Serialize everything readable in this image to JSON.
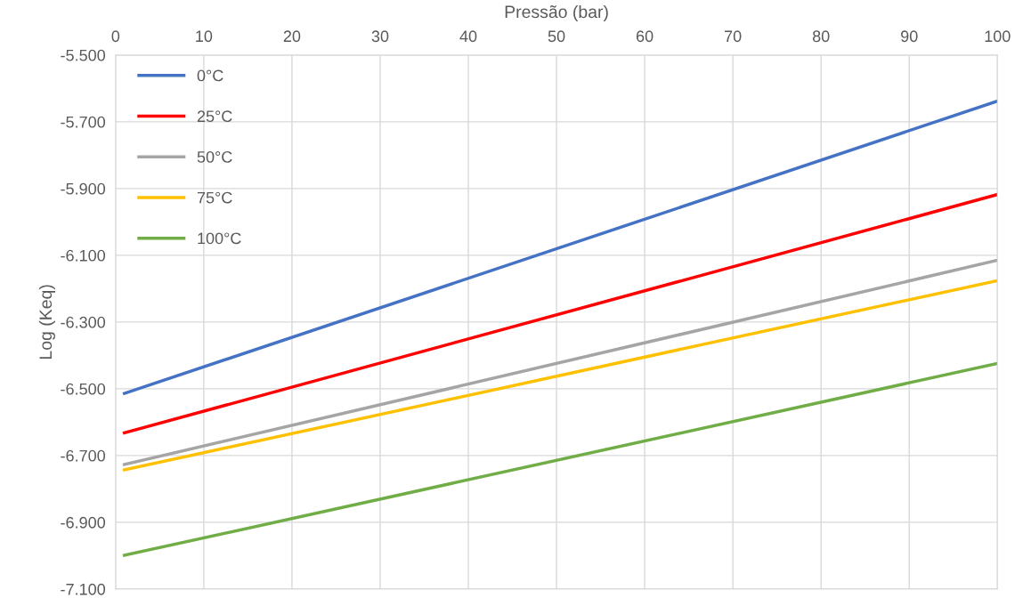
{
  "chart_data": {
    "type": "line",
    "xlabel": "Pressão (bar)",
    "ylabel": "Log (Keq)",
    "xlim": [
      0,
      100
    ],
    "xticks": [
      0,
      10,
      20,
      30,
      40,
      50,
      60,
      70,
      80,
      90,
      100
    ],
    "ylim": [
      -7.1,
      -5.5
    ],
    "yticks": [
      {
        "value": -7.1,
        "label": "-7.100"
      },
      {
        "value": -6.9,
        "label": "-6.900"
      },
      {
        "value": -6.7,
        "label": "-6.700"
      },
      {
        "value": -6.5,
        "label": "-6.500"
      },
      {
        "value": -6.3,
        "label": "-6.300"
      },
      {
        "value": -6.1,
        "label": "-6.100"
      },
      {
        "value": -5.9,
        "label": "-5.900"
      },
      {
        "value": -5.7,
        "label": "-5.700"
      },
      {
        "value": -5.5,
        "label": "-5.500"
      }
    ],
    "x": [
      1,
      100
    ],
    "series": [
      {
        "name": "0°C",
        "color": "#4472c4",
        "values": [
          -6.514,
          -5.638
        ]
      },
      {
        "name": "25°C",
        "color": "#ff0000",
        "values": [
          -6.632,
          -5.918
        ]
      },
      {
        "name": "50°C",
        "color": "#a5a5a5",
        "values": [
          -6.727,
          -6.115
        ]
      },
      {
        "name": "75°C",
        "color": "#ffc000",
        "values": [
          -6.743,
          -6.176
        ]
      },
      {
        "name": "100°C",
        "color": "#70ad47",
        "values": [
          -6.999,
          -6.424
        ]
      }
    ],
    "grid": true,
    "legend": "top left",
    "marker": "none",
    "line_style": "solid"
  }
}
